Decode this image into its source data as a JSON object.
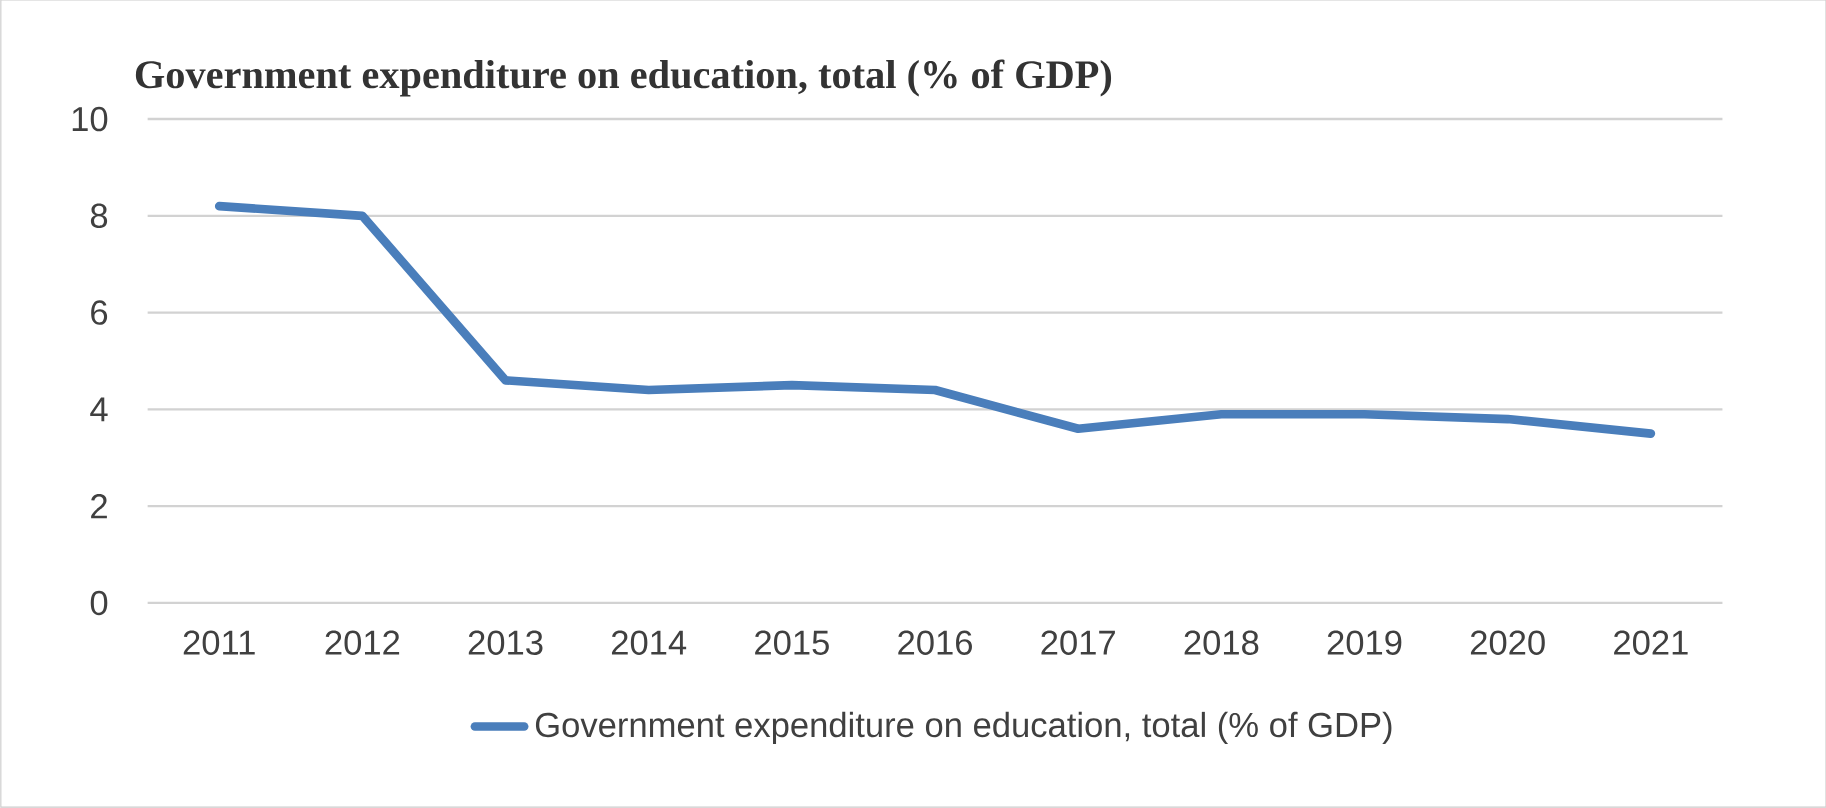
{
  "chart_data": {
    "type": "line",
    "title": "Government expenditure on education, total (% of GDP)",
    "categories": [
      "2011",
      "2012",
      "2013",
      "2014",
      "2015",
      "2016",
      "2017",
      "2018",
      "2019",
      "2020",
      "2021"
    ],
    "series": [
      {
        "name": "Government expenditure on education, total (% of GDP)",
        "color": "#4a7ebb",
        "values": [
          8.2,
          8.0,
          4.6,
          4.4,
          4.5,
          4.4,
          3.6,
          3.9,
          3.9,
          3.8,
          3.5
        ]
      }
    ],
    "ylim": [
      0,
      10
    ],
    "yticks": [
      0,
      2,
      4,
      6,
      8,
      10
    ],
    "grid": "y",
    "legend": "bottom",
    "marker": "none",
    "line_style": "solid"
  }
}
